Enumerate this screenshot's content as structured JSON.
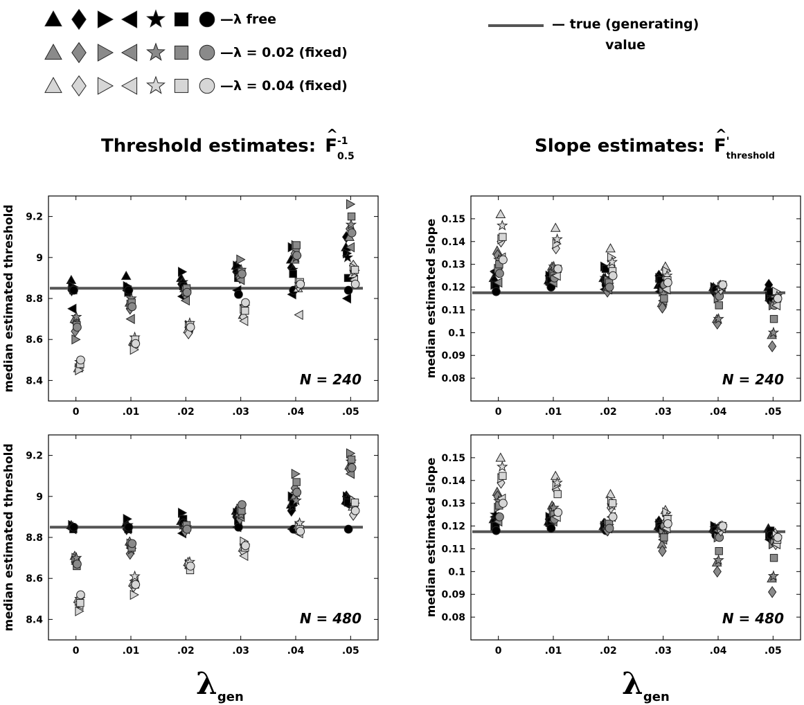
{
  "legend": {
    "rows": [
      {
        "label": "—λ free",
        "fill": "#000000"
      },
      {
        "label": "—λ = 0.02 (fixed)",
        "fill": "#8a8a8a"
      },
      {
        "label": "—λ = 0.04 (fixed)",
        "fill": "#d6d6d6"
      }
    ],
    "true_value_label_line1": "— true (generating)",
    "true_value_label_line2": "value",
    "marker_shapes": [
      "triangle-up",
      "diamond",
      "triangle-right",
      "triangle-left",
      "star",
      "square",
      "circle"
    ]
  },
  "columns": {
    "threshold_title": "Threshold estimates:",
    "threshold_symbol_base": "F",
    "threshold_symbol_sup": "-1",
    "threshold_symbol_sub": "0.5",
    "slope_title": "Slope estimates:",
    "slope_symbol_base": "F",
    "slope_symbol_sup": "'",
    "slope_symbol_sub": "threshold",
    "hat": "^"
  },
  "xlabel": {
    "symbol": "λ",
    "sub": "gen"
  },
  "colors": {
    "free": "#000000",
    "fixed_002": "#8a8a8a",
    "fixed_004": "#d6d6d6",
    "true_line": "#555555"
  },
  "chart_data": [
    {
      "type": "scatter",
      "ylabel": "median estimated threshold",
      "annotation": "N = 240",
      "x_categories": [
        "0",
        ".01",
        ".02",
        ".03",
        ".04",
        ".05"
      ],
      "yticks": [
        "8.4",
        "8.6",
        "8.8",
        "9",
        "9.2"
      ],
      "ylim": [
        8.3,
        9.3
      ],
      "true_value": 8.85,
      "series": [
        {
          "name": "λ free",
          "values": [
            [
              8.89,
              8.84,
              8.86,
              8.75,
              8.85,
              8.84,
              8.84
            ],
            [
              8.91,
              8.85,
              8.86,
              8.84,
              8.83,
              8.83,
              8.84
            ],
            [
              8.9,
              8.87,
              8.93,
              8.81,
              8.88,
              8.86,
              8.86
            ],
            [
              8.96,
              8.93,
              8.96,
              8.84,
              8.92,
              8.9,
              8.82
            ],
            [
              8.99,
              8.95,
              9.05,
              8.82,
              8.94,
              8.92,
              8.84
            ],
            [
              9.05,
              9.1,
              9.02,
              8.8,
              9.0,
              8.9,
              8.84
            ]
          ]
        },
        {
          "name": "λ = 0.02 (fixed)",
          "values": [
            [
              8.7,
              8.64,
              8.6,
              8.68,
              8.71,
              8.67,
              8.66
            ],
            [
              8.78,
              8.75,
              8.77,
              8.7,
              8.8,
              8.78,
              8.76
            ],
            [
              8.85,
              8.82,
              8.84,
              8.79,
              8.83,
              8.85,
              8.83
            ],
            [
              8.92,
              8.9,
              8.99,
              8.89,
              8.94,
              8.93,
              8.92
            ],
            [
              8.99,
              9.02,
              9.06,
              9.04,
              9.0,
              9.06,
              9.01
            ],
            [
              9.1,
              9.14,
              9.26,
              9.05,
              9.16,
              9.2,
              9.12
            ]
          ]
        },
        {
          "name": "λ = 0.04 (fixed)",
          "values": [
            [
              8.46,
              8.47,
              8.45,
              8.48,
              8.49,
              8.48,
              8.5
            ],
            [
              8.59,
              8.57,
              8.55,
              8.58,
              8.61,
              8.6,
              8.58
            ],
            [
              8.65,
              8.63,
              8.67,
              8.66,
              8.68,
              8.67,
              8.66
            ],
            [
              8.72,
              8.71,
              8.75,
              8.69,
              8.76,
              8.74,
              8.78
            ],
            [
              8.85,
              8.86,
              8.88,
              8.72,
              8.87,
              8.88,
              8.87
            ],
            [
              8.92,
              8.96,
              8.95,
              8.89,
              8.93,
              8.94,
              8.87
            ]
          ]
        }
      ]
    },
    {
      "type": "scatter",
      "ylabel": "median estimated slope",
      "annotation": "N = 240",
      "x_categories": [
        "0",
        ".01",
        ".02",
        ".03",
        ".04",
        ".05"
      ],
      "yticks": [
        "0.08",
        "0.09",
        "0.1",
        "0.11",
        "0.12",
        "0.13",
        "0.14",
        "0.15"
      ],
      "ylim": [
        0.07,
        0.16
      ],
      "true_value": 0.1175,
      "series": [
        {
          "name": "λ free",
          "values": [
            [
              0.124,
              0.123,
              0.121,
              0.127,
              0.126,
              0.121,
              0.118
            ],
            [
              0.123,
              0.125,
              0.125,
              0.121,
              0.122,
              0.123,
              0.12
            ],
            [
              0.124,
              0.123,
              0.129,
              0.119,
              0.124,
              0.128,
              0.121
            ],
            [
              0.121,
              0.125,
              0.124,
              0.118,
              0.122,
              0.123,
              0.12
            ],
            [
              0.12,
              0.118,
              0.12,
              0.118,
              0.119,
              0.119,
              0.119
            ],
            [
              0.12,
              0.121,
              0.116,
              0.114,
              0.117,
              0.118,
              0.114
            ]
          ]
        },
        {
          "name": "λ = 0.02 (fixed)",
          "values": [
            [
              0.136,
              0.134,
              0.128,
              0.122,
              0.132,
              0.13,
              0.126
            ],
            [
              0.129,
              0.127,
              0.126,
              0.122,
              0.129,
              0.125,
              0.124
            ],
            [
              0.12,
              0.118,
              0.123,
              0.119,
              0.121,
              0.122,
              0.12
            ],
            [
              0.113,
              0.111,
              0.118,
              0.114,
              0.117,
              0.115,
              0.121
            ],
            [
              0.106,
              0.104,
              0.115,
              0.118,
              0.106,
              0.112,
              0.116
            ],
            [
              0.099,
              0.094,
              0.112,
              0.113,
              0.1,
              0.106,
              0.112
            ]
          ]
        },
        {
          "name": "λ = 0.04 (fixed)",
          "values": [
            [
              0.152,
              0.14,
              0.141,
              0.133,
              0.147,
              0.142,
              0.132
            ],
            [
              0.146,
              0.137,
              0.139,
              0.125,
              0.141,
              0.128,
              0.128
            ],
            [
              0.137,
              0.129,
              0.133,
              0.126,
              0.131,
              0.127,
              0.125
            ],
            [
              0.129,
              0.124,
              0.127,
              0.119,
              0.125,
              0.123,
              0.122
            ],
            [
              0.121,
              0.119,
              0.12,
              0.12,
              0.12,
              0.121,
              0.121
            ],
            [
              0.117,
              0.114,
              0.118,
              0.112,
              0.116,
              0.115,
              0.115
            ]
          ]
        }
      ]
    },
    {
      "type": "scatter",
      "ylabel": "median estimated threshold",
      "annotation": "N = 480",
      "x_categories": [
        "0",
        ".01",
        ".02",
        ".03",
        ".04",
        ".05"
      ],
      "yticks": [
        "8.4",
        "8.6",
        "8.8",
        "9",
        "9.2"
      ],
      "ylim": [
        8.3,
        9.3
      ],
      "true_value": 8.85,
      "series": [
        {
          "name": "λ free",
          "values": [
            [
              8.86,
              8.85,
              8.86,
              8.84,
              8.85,
              8.84,
              8.85
            ],
            [
              8.87,
              8.84,
              8.89,
              8.84,
              8.86,
              8.84,
              8.85
            ],
            [
              8.88,
              8.87,
              8.92,
              8.82,
              8.86,
              8.89,
              8.87
            ],
            [
              8.93,
              8.9,
              8.92,
              8.85,
              8.91,
              8.88,
              8.85
            ],
            [
              8.96,
              8.93,
              9.0,
              8.84,
              8.95,
              8.97,
              8.84
            ],
            [
              8.98,
              9.0,
              9.0,
              8.96,
              8.99,
              8.97,
              8.84
            ]
          ]
        },
        {
          "name": "λ = 0.02 (fixed)",
          "values": [
            [
              8.71,
              8.68,
              8.7,
              8.67,
              8.7,
              8.66,
              8.67
            ],
            [
              8.78,
              8.72,
              8.77,
              8.76,
              8.74,
              8.75,
              8.77
            ],
            [
              8.86,
              8.83,
              8.85,
              8.84,
              8.85,
              8.86,
              8.84
            ],
            [
              8.92,
              8.89,
              8.94,
              8.9,
              8.91,
              8.93,
              8.96
            ],
            [
              9.0,
              9.04,
              9.11,
              9.02,
              8.98,
              9.07,
              9.02
            ],
            [
              9.15,
              9.13,
              9.21,
              9.11,
              9.17,
              9.18,
              9.14
            ]
          ]
        },
        {
          "name": "λ = 0.04 (fixed)",
          "values": [
            [
              8.5,
              8.48,
              8.44,
              8.47,
              8.5,
              8.48,
              8.52
            ],
            [
              8.58,
              8.56,
              8.52,
              8.59,
              8.61,
              8.57,
              8.57
            ],
            [
              8.68,
              8.66,
              8.67,
              8.65,
              8.68,
              8.64,
              8.66
            ],
            [
              8.75,
              8.73,
              8.78,
              8.71,
              8.76,
              8.75,
              8.76
            ],
            [
              8.86,
              8.84,
              8.85,
              8.82,
              8.87,
              8.84,
              8.83
            ],
            [
              8.95,
              8.91,
              8.98,
              8.95,
              8.96,
              8.97,
              8.93
            ]
          ]
        }
      ]
    },
    {
      "type": "scatter",
      "ylabel": "median estimated slope",
      "annotation": "N = 480",
      "x_categories": [
        "0",
        ".01",
        ".02",
        ".03",
        ".04",
        ".05"
      ],
      "yticks": [
        "0.08",
        "0.09",
        "0.1",
        "0.11",
        "0.12",
        "0.13",
        "0.14",
        "0.15"
      ],
      "ylim": [
        0.07,
        0.16
      ],
      "true_value": 0.1175,
      "series": [
        {
          "name": "λ free",
          "values": [
            [
              0.123,
              0.122,
              0.12,
              0.124,
              0.125,
              0.12,
              0.118
            ],
            [
              0.122,
              0.123,
              0.124,
              0.12,
              0.121,
              0.122,
              0.119
            ],
            [
              0.12,
              0.121,
              0.12,
              0.118,
              0.121,
              0.12,
              0.118
            ],
            [
              0.12,
              0.122,
              0.121,
              0.118,
              0.121,
              0.12,
              0.119
            ],
            [
              0.119,
              0.118,
              0.12,
              0.117,
              0.119,
              0.118,
              0.116
            ],
            [
              0.119,
              0.118,
              0.116,
              0.114,
              0.117,
              0.118,
              0.116
            ]
          ]
        },
        {
          "name": "λ = 0.02 (fixed)",
          "values": [
            [
              0.135,
              0.133,
              0.128,
              0.122,
              0.131,
              0.129,
              0.124
            ],
            [
              0.129,
              0.127,
              0.126,
              0.122,
              0.128,
              0.125,
              0.123
            ],
            [
              0.12,
              0.118,
              0.121,
              0.119,
              0.12,
              0.121,
              0.119
            ],
            [
              0.112,
              0.109,
              0.117,
              0.114,
              0.116,
              0.115,
              0.12
            ],
            [
              0.104,
              0.1,
              0.115,
              0.118,
              0.105,
              0.109,
              0.115
            ],
            [
              0.097,
              0.091,
              0.112,
              0.113,
              0.098,
              0.106,
              0.113
            ]
          ]
        },
        {
          "name": "λ = 0.04 (fixed)",
          "values": [
            [
              0.15,
              0.139,
              0.141,
              0.132,
              0.146,
              0.142,
              0.13
            ],
            [
              0.142,
              0.136,
              0.138,
              0.124,
              0.139,
              0.134,
              0.126
            ],
            [
              0.134,
              0.128,
              0.131,
              0.124,
              0.129,
              0.13,
              0.124
            ],
            [
              0.127,
              0.122,
              0.126,
              0.119,
              0.124,
              0.123,
              0.121
            ],
            [
              0.12,
              0.118,
              0.119,
              0.119,
              0.12,
              0.12,
              0.12
            ],
            [
              0.117,
              0.112,
              0.116,
              0.112,
              0.115,
              0.114,
              0.115
            ]
          ]
        }
      ]
    }
  ]
}
